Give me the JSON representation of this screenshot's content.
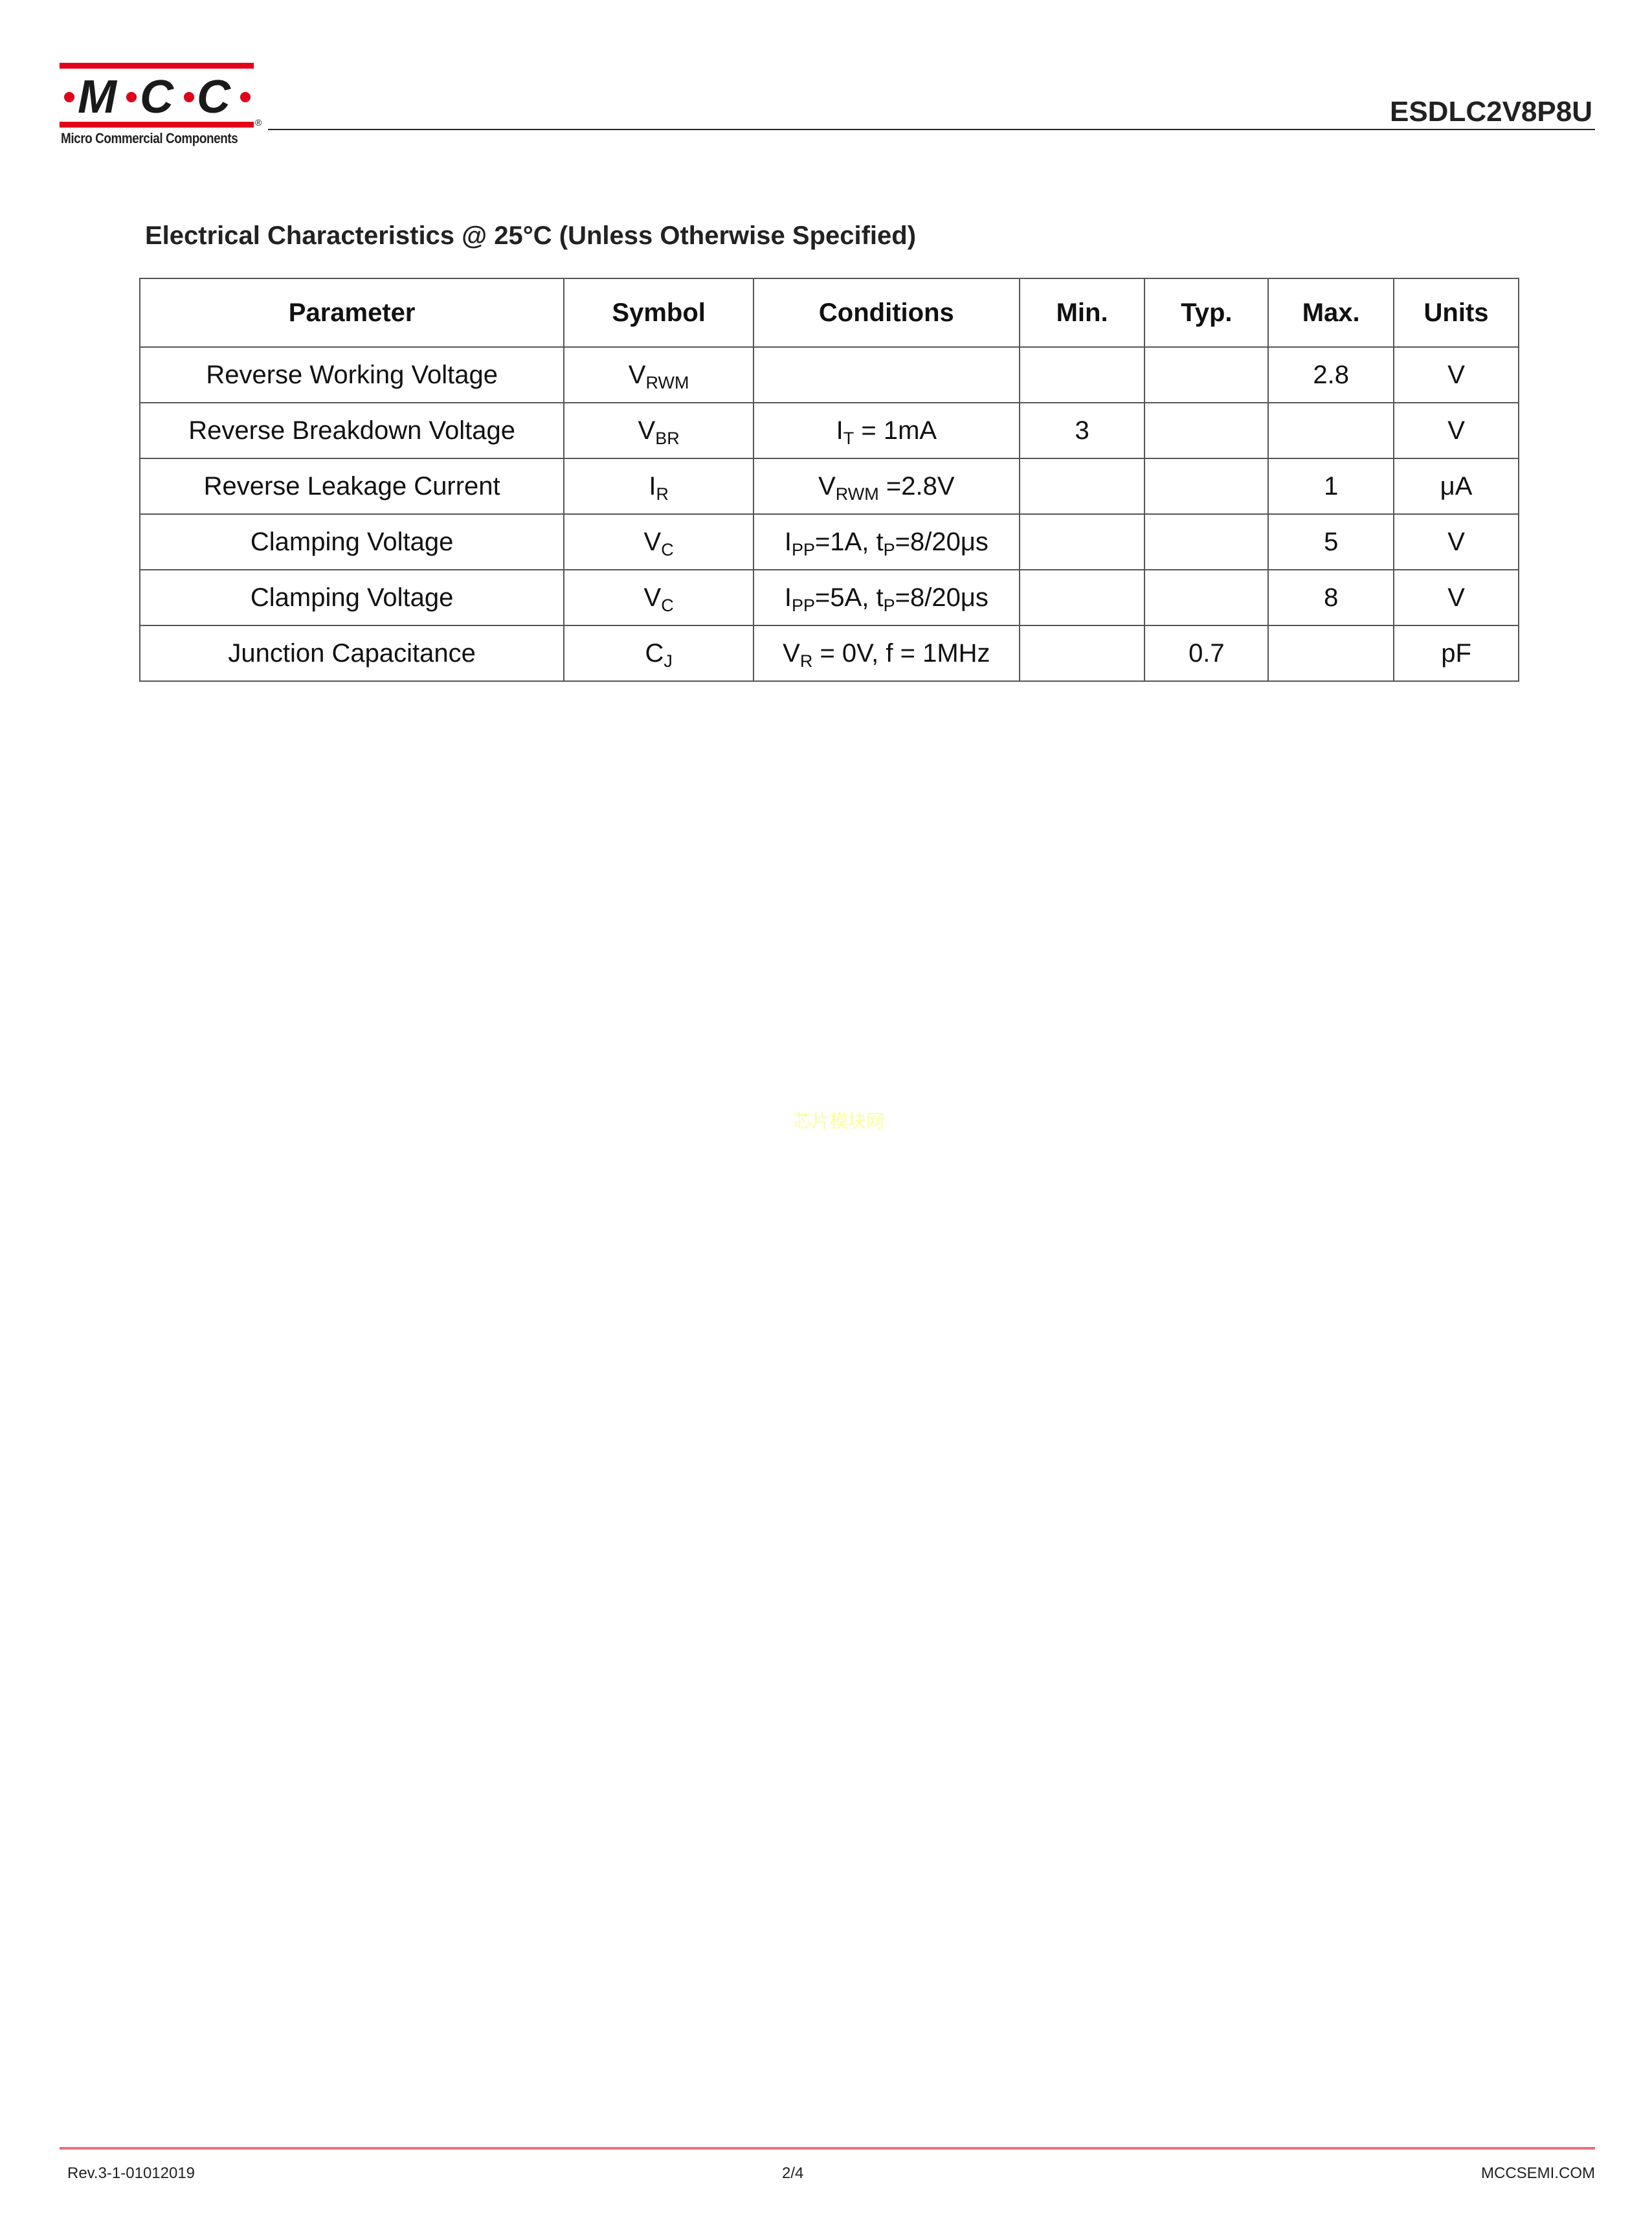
{
  "header": {
    "logo": {
      "text": "·M·C·C·",
      "caption": "Micro Commercial Components",
      "registered": "®",
      "brand_color": "#e2001a"
    },
    "doc_title": "ESDLC2V8P8U"
  },
  "section": {
    "title": "Electrical Characteristics  @ 25°C (Unless Otherwise Specified)"
  },
  "table": {
    "headers": [
      "Parameter",
      "Symbol",
      "Conditions",
      "Min.",
      "Typ.",
      "Max.",
      "Units"
    ],
    "rows": [
      {
        "parameter": "Reverse Working Voltage",
        "symbol": "V",
        "symbol_sub": "RWM",
        "cond": [],
        "min": "",
        "typ": "",
        "max": "2.8",
        "units": "V"
      },
      {
        "parameter": "Reverse Breakdown Voltage",
        "symbol": "V",
        "symbol_sub": "BR",
        "cond": [
          [
            "I",
            ""
          ],
          [
            "T",
            "sub"
          ],
          [
            " = 1mA",
            ""
          ]
        ],
        "min": "3",
        "typ": "",
        "max": "",
        "units": "V"
      },
      {
        "parameter": "Reverse Leakage Current",
        "symbol": "I",
        "symbol_sub": "R",
        "cond": [
          [
            "V",
            ""
          ],
          [
            "RWM",
            "sub"
          ],
          [
            " =2.8V",
            ""
          ]
        ],
        "min": "",
        "typ": "",
        "max": "1",
        "units": "μA"
      },
      {
        "parameter": "Clamping Voltage",
        "symbol": "V",
        "symbol_sub": "C",
        "cond": [
          [
            "I",
            ""
          ],
          [
            "PP",
            "sub"
          ],
          [
            "=1A, t",
            ""
          ],
          [
            "P",
            "sub"
          ],
          [
            "=8/20μs",
            ""
          ]
        ],
        "min": "",
        "typ": "",
        "max": "5",
        "units": "V"
      },
      {
        "parameter": "Clamping Voltage",
        "symbol": "V",
        "symbol_sub": "C",
        "cond": [
          [
            "I",
            ""
          ],
          [
            "PP",
            "sub"
          ],
          [
            "=5A, t",
            ""
          ],
          [
            "P",
            "sub"
          ],
          [
            "=8/20μs",
            ""
          ]
        ],
        "min": "",
        "typ": "",
        "max": "8",
        "units": "V"
      },
      {
        "parameter": "Junction Capacitance",
        "symbol": "C",
        "symbol_sub": "J",
        "cond": [
          [
            "V",
            ""
          ],
          [
            "R",
            "sub"
          ],
          [
            " = 0V, f = 1MHz",
            ""
          ]
        ],
        "min": "",
        "typ": "0.7",
        "max": "",
        "units": "pF"
      }
    ]
  },
  "watermark": {
    "text": "芯片模块网",
    "color": "#ffff99"
  },
  "footer": {
    "revision": "Rev.3-1-01012019",
    "page": "2/4",
    "website": "MCCSEMI.COM",
    "line_color": "#e8707a"
  }
}
